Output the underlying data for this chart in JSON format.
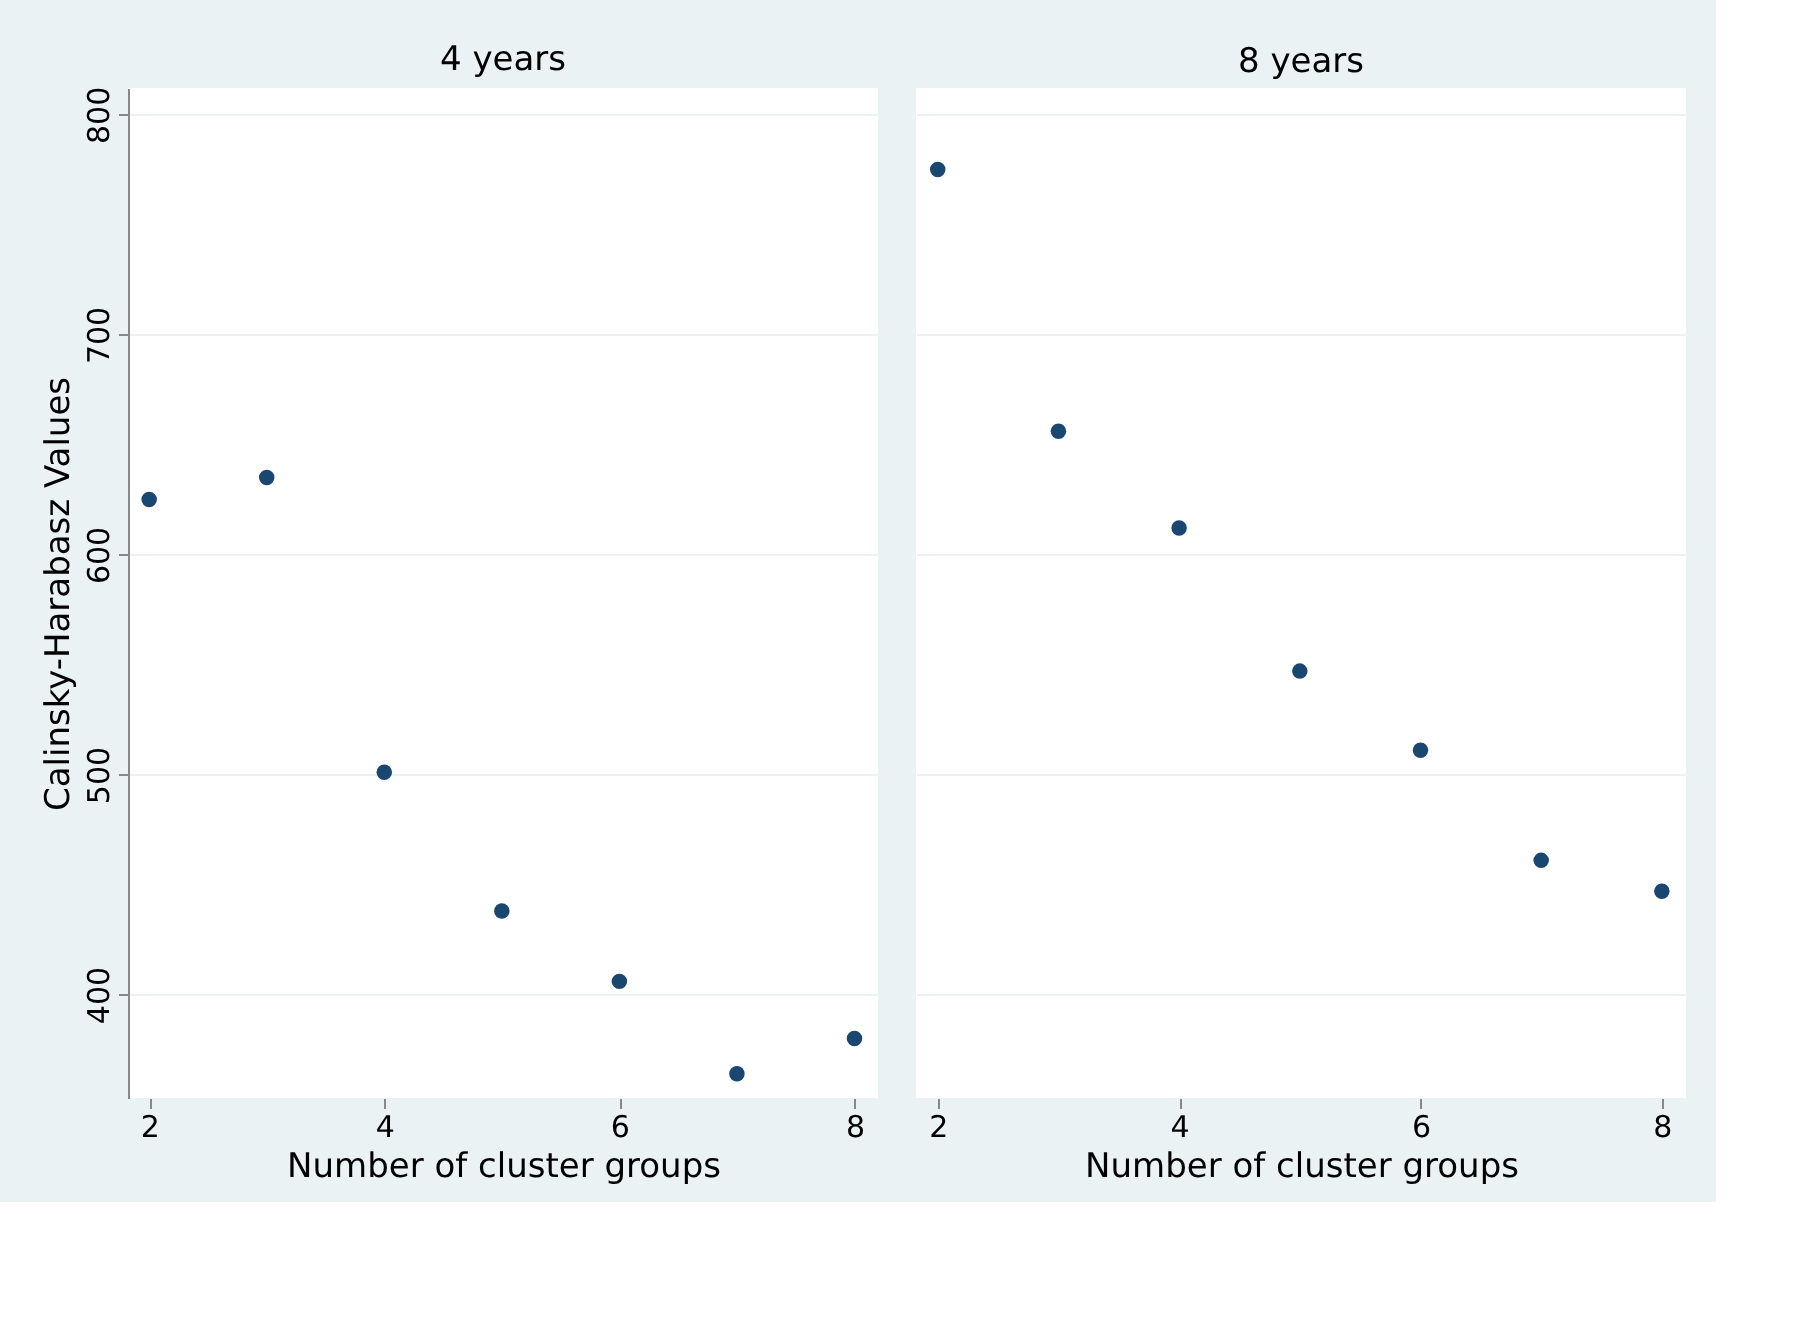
{
  "chart_data": [
    {
      "type": "scatter",
      "title": "4 years",
      "xlabel": "Number of cluster groups",
      "ylabel": "Calinsky-Harabasz Values",
      "x": [
        2,
        3,
        4,
        5,
        6,
        7,
        8
      ],
      "series": [
        {
          "color": "#1a476f",
          "values": [
            625,
            635,
            501,
            438,
            406,
            364,
            380
          ]
        }
      ],
      "xlim": [
        1.82,
        8.2
      ],
      "xticks": [
        2,
        4,
        6,
        8
      ],
      "ylim": [
        353,
        812
      ],
      "yticks": [
        400,
        500,
        600,
        700,
        800
      ],
      "grid": "y",
      "marker": "circle"
    },
    {
      "type": "scatter",
      "title": "8 years",
      "xlabel": "Number of cluster groups",
      "x": [
        2,
        3,
        4,
        5,
        6,
        7,
        8
      ],
      "series": [
        {
          "color": "#1a476f",
          "values": [
            775,
            656,
            612,
            547,
            511,
            461,
            447
          ]
        }
      ],
      "xlim": [
        1.82,
        8.2
      ],
      "xticks": [
        2,
        4,
        6,
        8
      ],
      "ylim": [
        353,
        812
      ],
      "yticks": [
        400,
        500,
        600,
        700,
        800
      ],
      "grid": "y",
      "marker": "circle",
      "tick_labels": "x"
    }
  ]
}
